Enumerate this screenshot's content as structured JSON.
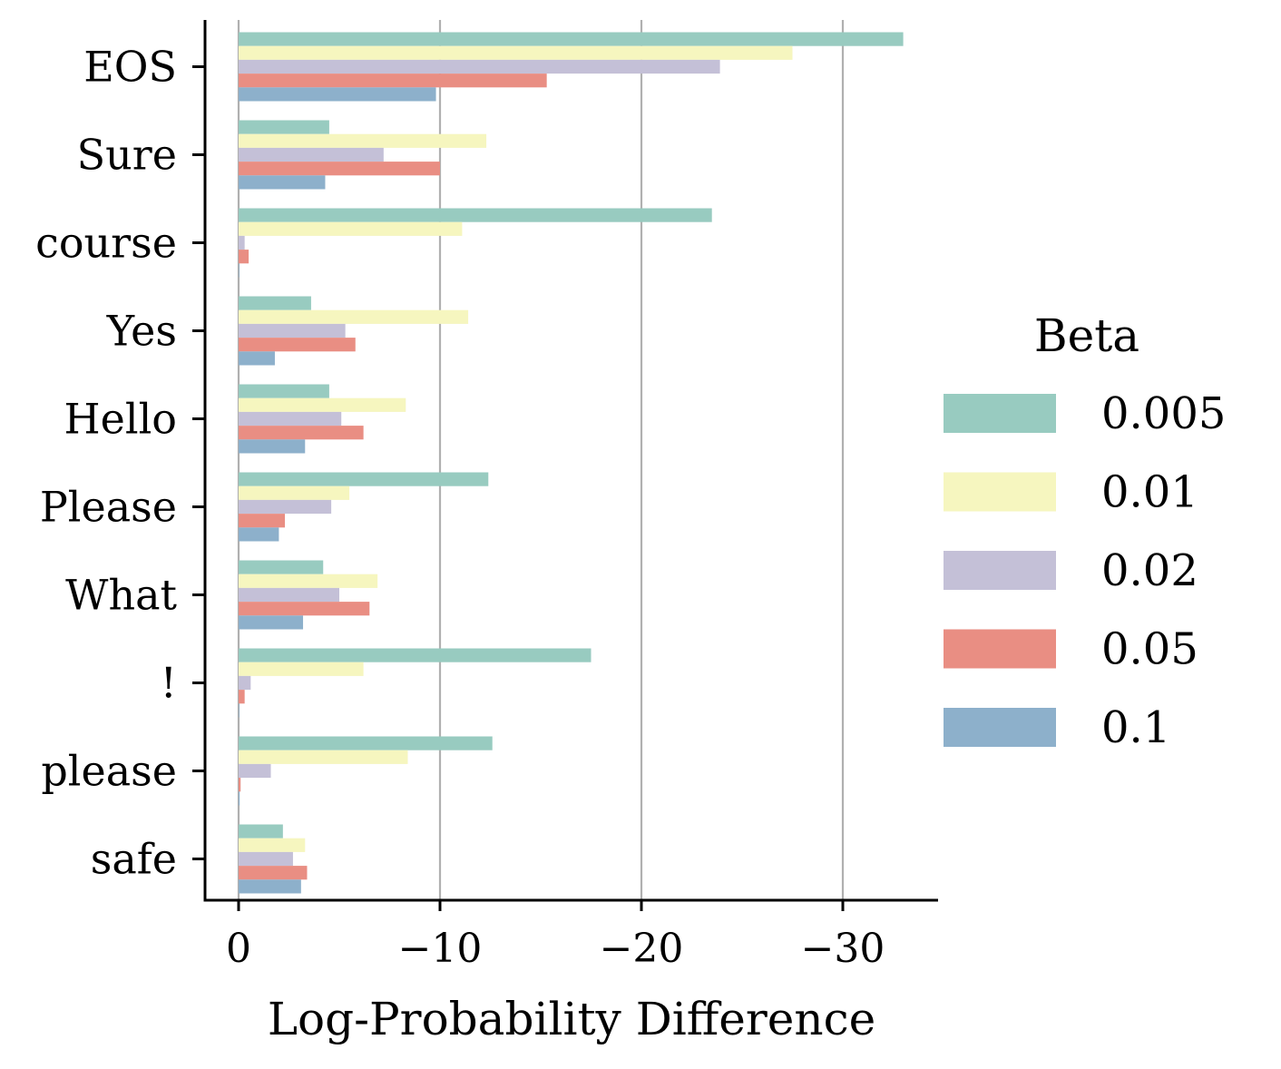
{
  "chart_data": {
    "type": "bar",
    "orientation": "horizontal",
    "categories": [
      "EOS",
      "Sure",
      "course",
      "Yes",
      "Hello",
      "Please",
      "What",
      "!",
      "please",
      "safe"
    ],
    "series": [
      {
        "name": "0.005",
        "color": "#98cbc0",
        "values": [
          -33.0,
          -4.5,
          -23.5,
          -3.6,
          -4.5,
          -12.4,
          -4.2,
          -17.5,
          -12.6,
          -2.2
        ]
      },
      {
        "name": "0.01",
        "color": "#f6f6bf",
        "values": [
          -27.5,
          -12.3,
          -11.1,
          -11.4,
          -8.3,
          -5.5,
          -6.9,
          -6.2,
          -8.4,
          -3.3
        ]
      },
      {
        "name": "0.02",
        "color": "#c4c0d7",
        "values": [
          -23.9,
          -7.2,
          -0.3,
          -5.3,
          -5.1,
          -4.6,
          -5.0,
          -0.6,
          -1.6,
          -2.7
        ]
      },
      {
        "name": "0.05",
        "color": "#e98e83",
        "values": [
          -15.3,
          -10.0,
          -0.5,
          -5.8,
          -6.2,
          -2.3,
          -6.5,
          -0.3,
          -0.1,
          -3.4
        ]
      },
      {
        "name": "0.1",
        "color": "#8db0cb",
        "values": [
          -9.8,
          -4.3,
          0.0,
          -1.8,
          -3.3,
          -2.0,
          -3.2,
          0.0,
          -0.05,
          -3.1
        ]
      }
    ],
    "xlabel": "Log-Probability Difference",
    "ylabel": "",
    "xlim": [
      1.7,
      -34.8
    ],
    "xticks": [
      0,
      -10,
      -20,
      -30
    ],
    "xtick_labels": [
      "0",
      "−10",
      "−20",
      "−30"
    ],
    "grid": "vertical",
    "legend": {
      "title": "Beta",
      "placement": "right-outside"
    },
    "title": ""
  }
}
